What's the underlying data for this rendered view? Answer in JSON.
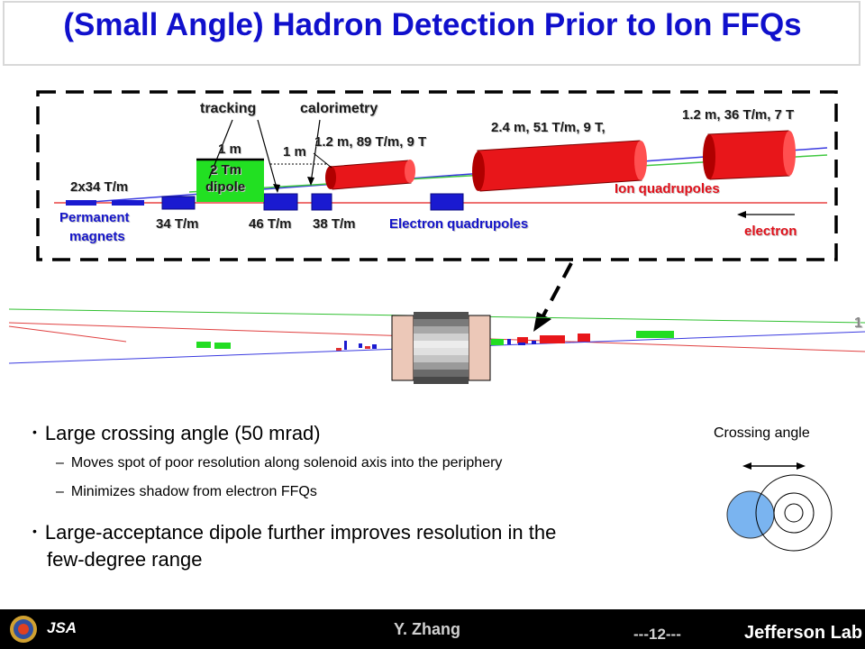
{
  "title": "(Small Angle) Hadron Detection Prior to Ion FFQs",
  "detail": {
    "tracking": "tracking",
    "calorimetry": "calorimetry",
    "dipole_len": "1 m",
    "dipole_field_1": "2 Tm",
    "dipole_field_2": "dipole",
    "gap_len": "1 m",
    "q1": "1.2 m, 89 T/m, 9 T",
    "q2": "2.4 m, 51 T/m, 9 T,",
    "q3": "1.2 m, 36 T/m, 7 T",
    "pm_grad": "2x34 T/m",
    "pm_1": "Permanent",
    "pm_2": "magnets",
    "g1": "34 T/m",
    "g2": "46 T/m",
    "g3": "38 T/m",
    "electron_quads": "Electron quadrupoles",
    "ion_quads": "Ion quadrupoles",
    "electron": "electron"
  },
  "overview": {
    "corner_mark": "1"
  },
  "bullets": [
    {
      "level": 1,
      "text": "Large crossing angle (50 mrad)"
    },
    {
      "level": 2,
      "text": "Moves spot of poor resolution along solenoid axis into the periphery"
    },
    {
      "level": 2,
      "text": "Minimizes shadow from electron FFQs"
    },
    {
      "level": 1,
      "text": "Large-acceptance dipole further improves resolution in the"
    },
    {
      "level": 1,
      "text": "few-degree range"
    }
  ],
  "crossing_angle": "Crossing angle",
  "footer": {
    "author": "Y. Zhang",
    "page": "---12---",
    "lab": "Jefferson Lab",
    "logo_text": "JSA"
  },
  "colors": {
    "title": "#1010cc",
    "magnet_red": "#e8161a",
    "magnet_blue": "#1a1ad0",
    "dipole_green": "#22e022",
    "beam_red": "#e03030",
    "beam_blue": "#3030e0",
    "beam_green": "#30d030"
  }
}
